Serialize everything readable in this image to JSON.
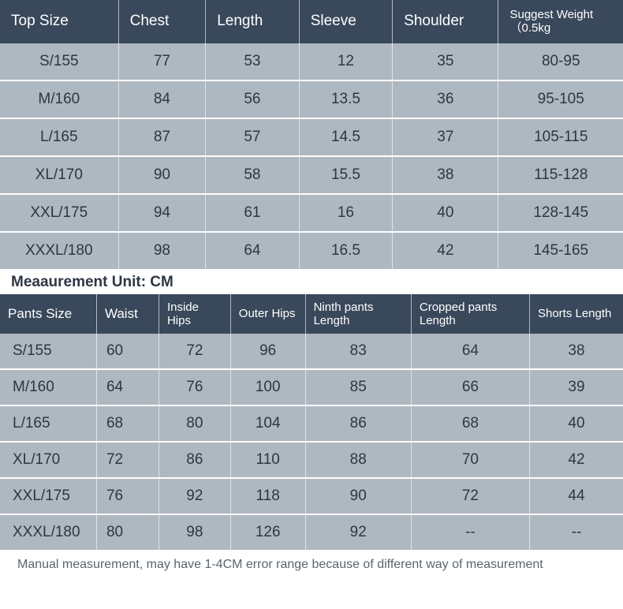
{
  "colors": {
    "header_bg": "#39485b",
    "header_text": "#ffffff",
    "cell_bg": "#aeb8c1",
    "cell_text": "#2d3742",
    "row_divider": "#ffffff",
    "col_divider": "#dfe3e7",
    "footnote_text": "#5a6570"
  },
  "top_table": {
    "columns": [
      "Top Size",
      "Chest",
      "Length",
      "Sleeve",
      "Shoulder",
      "Suggest Weight（0.5kg"
    ],
    "col_widths": [
      "19%",
      "14%",
      "15%",
      "15%",
      "17%",
      "20%"
    ],
    "rows": [
      [
        "S/155",
        "77",
        "53",
        "12",
        "35",
        "80-95"
      ],
      [
        "M/160",
        "84",
        "56",
        "13.5",
        "36",
        "95-105"
      ],
      [
        "L/165",
        "87",
        "57",
        "14.5",
        "37",
        "105-115"
      ],
      [
        "XL/170",
        "90",
        "58",
        "15.5",
        "38",
        "115-128"
      ],
      [
        "XXL/175",
        "94",
        "61",
        "16",
        "40",
        "128-145"
      ],
      [
        "XXXL/180",
        "98",
        "64",
        "16.5",
        "42",
        "145-165"
      ]
    ]
  },
  "unit_label": "Meaaurement Unit: CM",
  "pants_table": {
    "columns": [
      "Pants Size",
      "Waist",
      "Inside Hips",
      "Outer Hips",
      "Ninth pants Length",
      "Cropped pants Length",
      "Shorts Length"
    ],
    "col_widths": [
      "15.5%",
      "10%",
      "11.5%",
      "12%",
      "17%",
      "19%",
      "15%"
    ],
    "rows": [
      [
        "S/155",
        "60",
        "72",
        "96",
        "83",
        "64",
        "38"
      ],
      [
        "M/160",
        "64",
        "76",
        "100",
        "85",
        "66",
        "39"
      ],
      [
        "L/165",
        "68",
        "80",
        "104",
        "86",
        "68",
        "40"
      ],
      [
        "XL/170",
        "72",
        "86",
        "110",
        "88",
        "70",
        "42"
      ],
      [
        "XXL/175",
        "76",
        "92",
        "118",
        "90",
        "72",
        "44"
      ],
      [
        "XXXL/180",
        "80",
        "98",
        "126",
        "92",
        "--",
        "--"
      ]
    ]
  },
  "footnote": "Manual measurement, may have 1-4CM error range because of different way of measurement"
}
